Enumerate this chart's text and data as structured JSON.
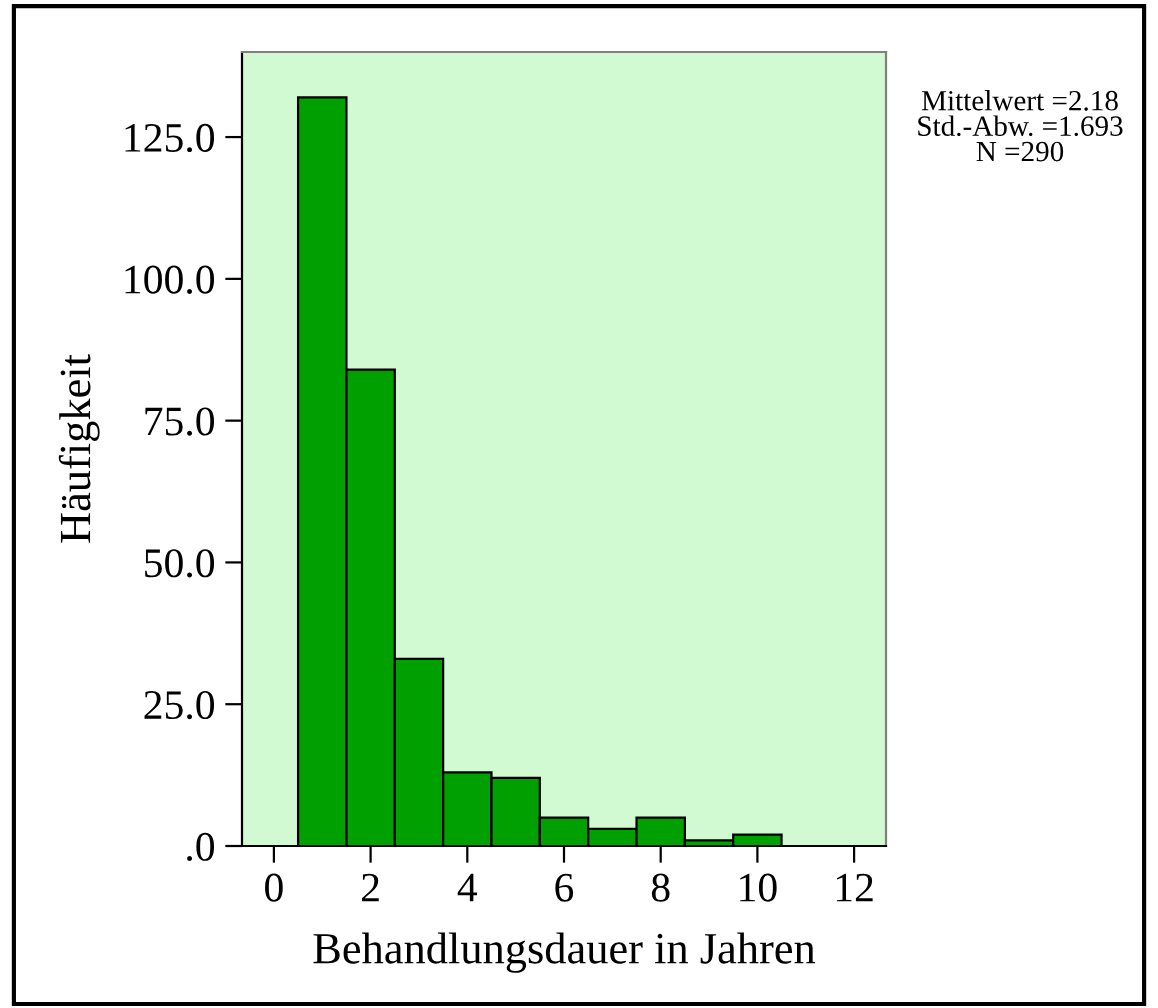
{
  "chart_data": {
    "type": "histogram",
    "xlabel": "Behandlungsdauer in Jahren",
    "ylabel": "Häufigkeit",
    "bins": [
      0.5,
      1.5,
      2.5,
      3.5,
      4.5,
      5.5,
      6.5,
      7.5,
      8.5,
      9.5,
      10.5
    ],
    "values": [
      132,
      84,
      33,
      13,
      12,
      5,
      3,
      5,
      1,
      2
    ],
    "color": "#00a000",
    "xlim": [
      -0.66,
      12.66
    ],
    "xticks": [
      0,
      2,
      4,
      6,
      8,
      10,
      12
    ],
    "ylim": [
      0,
      140
    ],
    "yticks": [
      {
        "value": 0,
        "label": ".0"
      },
      {
        "value": 25,
        "label": "25.0"
      },
      {
        "value": 50,
        "label": "50.0"
      },
      {
        "value": 75,
        "label": "75.0"
      },
      {
        "value": 100,
        "label": "100.0"
      },
      {
        "value": 125,
        "label": "125.0"
      }
    ],
    "annotations": [
      "Mittelwert =2.18\nStd.-Abw. =1.693\nN =290"
    ],
    "grid": false
  }
}
